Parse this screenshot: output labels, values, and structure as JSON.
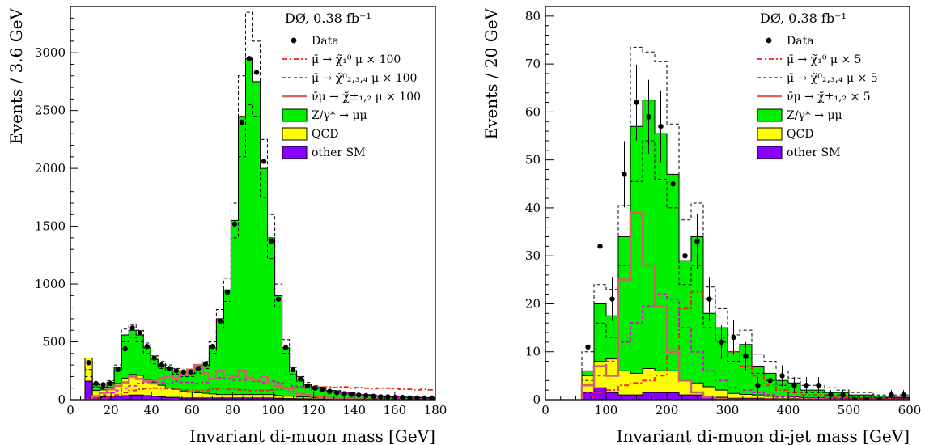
{
  "chart_data": [
    {
      "type": "bar",
      "experiment_label": "DØ, 0.38 fb⁻¹",
      "xlabel": "Invariant di-muon mass [GeV]",
      "ylabel": "Events / 3.6 GeV",
      "xlim": [
        0,
        180
      ],
      "ylim": [
        0,
        3400
      ],
      "xticks": [
        0,
        20,
        40,
        60,
        80,
        100,
        120,
        140,
        160,
        180
      ],
      "yticks": [
        0,
        500,
        1000,
        1500,
        2000,
        2500,
        3000
      ],
      "bin_width": 3.6,
      "legend_position": "top-right",
      "legend": [
        {
          "key": "data",
          "label": "Data"
        },
        {
          "key": "sig1",
          "label": "μ̄ → χ̃₁⁰ μ × 100"
        },
        {
          "key": "sig2",
          "label": "μ̄ → χ̃⁰₂,₃,₄ μ × 100"
        },
        {
          "key": "sig3",
          "label": "ν̄μ → χ̃±₁,₂ μ × 100"
        },
        {
          "key": "z",
          "label": "Z/γ* → μμ"
        },
        {
          "key": "qcd",
          "label": "QCD"
        },
        {
          "key": "other",
          "label": "other SM"
        }
      ],
      "bin_edges": [
        7.2,
        10.8,
        14.4,
        18,
        21.6,
        25.2,
        28.8,
        32.4,
        36,
        39.6,
        43.2,
        46.8,
        50.4,
        54,
        57.6,
        61.2,
        64.8,
        68.4,
        72,
        75.6,
        79.2,
        82.8,
        86.4,
        90,
        93.6,
        97.2,
        100.8,
        104.4,
        108,
        111.6,
        115.2,
        118.8,
        122.4,
        126,
        129.6,
        133.2,
        136.8,
        140.4,
        144,
        147.6,
        151.2,
        154.8,
        158.4,
        162,
        165.6,
        169.2,
        172.8,
        176.4,
        180
      ],
      "stack_other": [
        160,
        30,
        25,
        25,
        30,
        35,
        40,
        40,
        35,
        30,
        25,
        20,
        20,
        15,
        15,
        15,
        15,
        15,
        15,
        15,
        15,
        15,
        15,
        15,
        15,
        15,
        12,
        10,
        10,
        8,
        8,
        6,
        5,
        5,
        5,
        4,
        4,
        3,
        3,
        3,
        3,
        2,
        2,
        2,
        2,
        2,
        2,
        2
      ],
      "stack_qcd": [
        200,
        50,
        60,
        80,
        110,
        150,
        180,
        170,
        140,
        120,
        100,
        80,
        70,
        60,
        50,
        45,
        40,
        35,
        30,
        30,
        30,
        30,
        30,
        30,
        30,
        30,
        25,
        20,
        20,
        15,
        15,
        12,
        10,
        10,
        10,
        8,
        8,
        6,
        6,
        6,
        5,
        4,
        4,
        4,
        4,
        4,
        4,
        4
      ],
      "stack_total": [
        240,
        130,
        110,
        150,
        280,
        560,
        600,
        560,
        450,
        350,
        300,
        280,
        250,
        230,
        230,
        260,
        300,
        450,
        700,
        950,
        1550,
        2450,
        2950,
        2750,
        2000,
        1400,
        900,
        450,
        250,
        180,
        130,
        110,
        100,
        80,
        70,
        60,
        50,
        45,
        40,
        35,
        30,
        25,
        25,
        20,
        20,
        20,
        15,
        15
      ],
      "envelope_upper": [
        260,
        140,
        120,
        165,
        300,
        610,
        650,
        600,
        490,
        380,
        330,
        300,
        270,
        250,
        250,
        290,
        330,
        500,
        780,
        1050,
        1700,
        2800,
        3350,
        3100,
        2250,
        1600,
        1000,
        520,
        280,
        200,
        150,
        120,
        110,
        90,
        80,
        70,
        60,
        50,
        45,
        40,
        35,
        30,
        28,
        25,
        22,
        22,
        18,
        18
      ],
      "envelope_lower": [
        200,
        110,
        95,
        130,
        250,
        500,
        540,
        500,
        400,
        310,
        270,
        250,
        220,
        200,
        200,
        230,
        270,
        400,
        620,
        850,
        1400,
        2100,
        2550,
        2450,
        1750,
        1220,
        800,
        400,
        220,
        160,
        110,
        95,
        85,
        70,
        60,
        50,
        42,
        38,
        34,
        30,
        26,
        22,
        21,
        17,
        17,
        17,
        13,
        13
      ],
      "data_x": [
        9,
        12.6,
        16.2,
        19.8,
        23.4,
        27,
        30.6,
        34.2,
        37.8,
        41.4,
        45,
        48.6,
        52.2,
        55.8,
        59.4,
        63,
        66.6,
        70.2,
        73.8,
        77.4,
        81,
        84.6,
        88.2,
        91.8,
        95.4,
        99,
        102.6,
        106.2,
        109.8,
        113.4,
        117,
        120.6,
        124.2,
        127.8,
        131.4,
        135,
        138.6,
        142.2,
        145.8,
        149.4,
        153,
        156.6,
        160.2,
        163.8,
        167.4,
        171,
        174.6,
        178.2
      ],
      "data_y": [
        320,
        140,
        130,
        140,
        260,
        440,
        620,
        580,
        460,
        360,
        300,
        270,
        250,
        240,
        240,
        270,
        310,
        460,
        680,
        930,
        1520,
        2400,
        2950,
        2830,
        2060,
        1370,
        870,
        450,
        260,
        180,
        120,
        100,
        90,
        70,
        60,
        50,
        45,
        40,
        35,
        30,
        25,
        25,
        20,
        20,
        15,
        15,
        15,
        15
      ],
      "sig1_y": [
        0,
        5,
        10,
        20,
        40,
        60,
        80,
        90,
        95,
        100,
        100,
        95,
        90,
        85,
        80,
        75,
        80,
        90,
        95,
        90,
        90,
        85,
        80,
        80,
        80,
        85,
        90,
        95,
        100,
        105,
        110,
        115,
        110,
        110,
        105,
        110,
        100,
        105,
        100,
        95,
        100,
        100,
        95,
        90,
        90,
        85,
        90,
        85
      ],
      "sig2_y": [
        0,
        20,
        40,
        60,
        80,
        100,
        120,
        140,
        150,
        160,
        150,
        140,
        160,
        150,
        150,
        140,
        150,
        180,
        190,
        180,
        170,
        170,
        180,
        160,
        150,
        160,
        150,
        140,
        120,
        110,
        100,
        90,
        80,
        70,
        60,
        55,
        50,
        45,
        40,
        35,
        30,
        25,
        20,
        15,
        10,
        8,
        6,
        5
      ],
      "sig3_y": [
        0,
        30,
        60,
        90,
        120,
        150,
        200,
        180,
        160,
        140,
        180,
        200,
        190,
        220,
        260,
        300,
        230,
        180,
        250,
        210,
        200,
        250,
        190,
        170,
        200,
        140,
        120,
        100,
        70,
        50,
        40,
        30,
        20,
        15,
        10,
        8,
        5,
        3,
        2,
        1,
        0,
        0,
        0,
        0,
        0,
        0,
        0,
        0
      ]
    },
    {
      "type": "bar",
      "experiment_label": "DØ, 0.38 fb⁻¹",
      "xlabel": "Invariant di-muon di-jet mass [GeV]",
      "ylabel": "Events / 20 GeV",
      "xlim": [
        0,
        600
      ],
      "ylim": [
        0,
        82
      ],
      "xticks": [
        0,
        100,
        200,
        300,
        400,
        500,
        600
      ],
      "yticks": [
        0,
        10,
        20,
        30,
        40,
        50,
        60,
        70,
        80
      ],
      "bin_width": 20,
      "legend_position": "top-right",
      "legend": [
        {
          "key": "data",
          "label": "Data"
        },
        {
          "key": "sig1",
          "label": "μ̄ → χ̃₁⁰ μ × 5"
        },
        {
          "key": "sig2",
          "label": "μ̄ → χ̃⁰₂,₃,₄ μ × 5"
        },
        {
          "key": "sig3",
          "label": "ν̄μ → χ̃±₁,₂ × 5"
        },
        {
          "key": "z",
          "label": "Z/γ* → μμ"
        },
        {
          "key": "qcd",
          "label": "QCD"
        },
        {
          "key": "other",
          "label": "other SM"
        }
      ],
      "bin_edges": [
        60,
        80,
        100,
        120,
        140,
        160,
        180,
        200,
        220,
        240,
        260,
        280,
        300,
        320,
        340,
        360,
        380,
        400,
        420,
        440,
        460,
        480,
        500,
        520,
        540,
        560,
        580,
        600
      ],
      "stack_other": [
        1.5,
        2.5,
        1.5,
        1,
        1,
        1.5,
        1.5,
        1.5,
        1,
        1,
        0.7,
        0.5,
        0.3,
        0.3,
        0.3,
        0.2,
        0.2,
        0.2,
        0.1,
        0.1,
        0.1,
        0.1,
        0.1,
        0.1,
        0.1,
        0.1,
        0.1
      ],
      "stack_qcd": [
        3.5,
        5.5,
        7,
        5,
        4.5,
        5,
        4.5,
        4.5,
        3,
        2.5,
        2,
        1.5,
        1,
        0.8,
        0.7,
        0.5,
        0.5,
        0.4,
        0.3,
        0.3,
        0.2,
        0.2,
        0.2,
        0.2,
        0.2,
        0.2,
        0.2
      ],
      "stack_total": [
        6,
        20,
        17.5,
        34,
        57,
        62.5,
        55.5,
        47,
        29,
        34,
        18,
        15,
        10,
        11.5,
        7,
        5.5,
        4,
        3.5,
        2,
        2,
        1.5,
        1.5,
        1,
        1,
        0.7,
        0.5,
        0.5
      ],
      "envelope_upper": [
        10,
        24,
        23,
        40.5,
        73.5,
        72.5,
        70.5,
        57.5,
        37.5,
        41,
        23.5,
        19,
        13.5,
        14.5,
        9.5,
        8,
        6,
        4.5,
        3,
        3,
        2.5,
        2,
        1.5,
        1.5,
        1,
        1,
        1
      ],
      "envelope_lower": [
        4,
        16,
        13,
        28,
        45.5,
        54,
        46,
        40,
        24,
        28,
        15,
        12,
        8,
        9.5,
        5.5,
        4,
        3,
        2.5,
        1.5,
        1.5,
        1,
        1,
        0.5,
        0.5,
        0.4,
        0.3,
        0.3
      ],
      "data_x": [
        70,
        90,
        110,
        130,
        150,
        170,
        190,
        210,
        230,
        250,
        270,
        290,
        310,
        330,
        350,
        370,
        390,
        410,
        430,
        450,
        470,
        490,
        510,
        530,
        550,
        570,
        590
      ],
      "data_y": [
        11,
        32,
        21,
        47,
        62,
        59,
        57,
        45,
        30,
        33,
        21,
        12,
        13,
        9,
        3,
        4,
        5,
        3,
        3,
        3,
        1,
        1,
        0,
        0,
        0,
        1,
        1
      ],
      "data_err": [
        3.3,
        5.7,
        4.6,
        6.9,
        7.9,
        7.7,
        7.5,
        6.7,
        5.5,
        5.7,
        4.6,
        3.5,
        3.6,
        3,
        1.7,
        2,
        2.2,
        1.7,
        1.7,
        1.7,
        1,
        1,
        0,
        0,
        0,
        1,
        1
      ],
      "sig1_y": [
        0.5,
        1.5,
        2,
        3,
        3.5,
        4,
        5,
        10,
        19,
        22.5,
        21,
        13,
        10,
        7,
        5,
        3,
        2,
        1.5,
        1,
        1,
        0.5,
        0.5,
        0.3,
        0.3,
        0.2,
        0.2,
        0.1
      ],
      "sig2_y": [
        1.5,
        5,
        8,
        12,
        16,
        19.5,
        22,
        21,
        15,
        10,
        6,
        4,
        2.5,
        2,
        1.5,
        1,
        0.5,
        0.5,
        0.3,
        0.3,
        0.2,
        0.2,
        0.1,
        0.1,
        0.1,
        0.1,
        0.1
      ],
      "sig3_y": [
        3,
        7,
        5,
        25,
        39,
        28,
        19.5,
        10,
        4,
        1.5,
        0.5,
        0.2,
        0,
        0,
        0,
        0,
        0,
        0,
        0,
        0,
        0,
        0,
        0,
        0,
        0,
        0,
        0
      ]
    }
  ]
}
